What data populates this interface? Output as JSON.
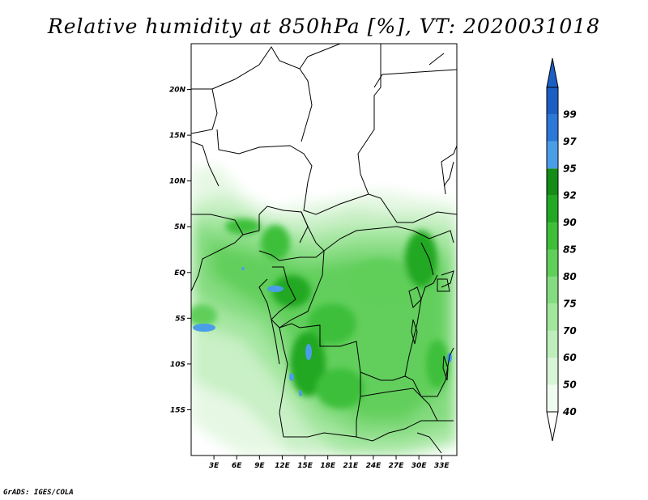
{
  "title": "Relative humidity at 850hPa [%], VT: 2020031018",
  "footer": "GrADS: IGES/COLA",
  "map": {
    "lon_range": [
      0,
      35
    ],
    "lat_range": [
      -20,
      25
    ],
    "lat_ticks": [
      {
        "value": 20,
        "label": "20N"
      },
      {
        "value": 15,
        "label": "15N"
      },
      {
        "value": 10,
        "label": "10N"
      },
      {
        "value": 5,
        "label": "5N"
      },
      {
        "value": 0,
        "label": "EQ"
      },
      {
        "value": -5,
        "label": "5S"
      },
      {
        "value": -10,
        "label": "10S"
      },
      {
        "value": -15,
        "label": "15S"
      }
    ],
    "lon_ticks": [
      {
        "value": 3,
        "label": "3E"
      },
      {
        "value": 6,
        "label": "6E"
      },
      {
        "value": 9,
        "label": "9E"
      },
      {
        "value": 12,
        "label": "12E"
      },
      {
        "value": 15,
        "label": "15E"
      },
      {
        "value": 18,
        "label": "18E"
      },
      {
        "value": 21,
        "label": "21E"
      },
      {
        "value": 24,
        "label": "24E"
      },
      {
        "value": 27,
        "label": "27E"
      },
      {
        "value": 30,
        "label": "30E"
      },
      {
        "value": 33,
        "label": "33E"
      }
    ]
  },
  "colorbar": {
    "levels": [
      {
        "value": "40",
        "color": "#f0fbf0"
      },
      {
        "value": "50",
        "color": "#d8f5d6"
      },
      {
        "value": "60",
        "color": "#bdeebb"
      },
      {
        "value": "70",
        "color": "#a2e69e"
      },
      {
        "value": "75",
        "color": "#85dc80"
      },
      {
        "value": "80",
        "color": "#5fcf5a"
      },
      {
        "value": "85",
        "color": "#3dbf3a"
      },
      {
        "value": "90",
        "color": "#23a824"
      },
      {
        "value": "92",
        "color": "#148c16"
      },
      {
        "value": "95",
        "color": "#4a9ee8"
      },
      {
        "value": "97",
        "color": "#2b78d8"
      },
      {
        "value": "99",
        "color": "#1c5fc4"
      }
    ],
    "below_color": "#ffffff",
    "above_color": "#1c5fc4"
  }
}
